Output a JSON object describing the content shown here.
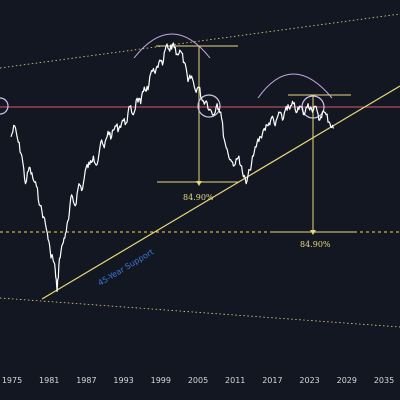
{
  "chart_data": {
    "type": "line",
    "title": "",
    "xlabel": "",
    "ylabel": "",
    "x_ticks": [
      "1975",
      "1981",
      "1987",
      "1993",
      "1999",
      "2005",
      "2011",
      "2017",
      "2023",
      "2029",
      "2035"
    ],
    "xlim": [
      1973,
      2039
    ],
    "ylim": [
      0,
      100
    ],
    "grid": false,
    "series": [
      {
        "points": [
          [
            1973.0,
            70.0
          ],
          [
            1973.6,
            74.0
          ],
          [
            1974.2,
            68.0
          ],
          [
            1974.8,
            63.0
          ],
          [
            1975.4,
            53.0
          ],
          [
            1976.0,
            59.0
          ],
          [
            1976.6,
            55.0
          ],
          [
            1977.2,
            52.0
          ],
          [
            1977.8,
            45.0
          ],
          [
            1978.4,
            41.0
          ],
          [
            1979.0,
            35.0
          ],
          [
            1979.5,
            28.0
          ],
          [
            1979.9,
            26.0
          ],
          [
            1980.3,
            22.0
          ],
          [
            1980.6,
            14.0
          ],
          [
            1981.0,
            26.0
          ],
          [
            1981.5,
            31.0
          ],
          [
            1982.0,
            35.0
          ],
          [
            1982.5,
            40.0
          ],
          [
            1983.0,
            49.0
          ],
          [
            1983.6,
            45.0
          ],
          [
            1984.2,
            53.0
          ],
          [
            1984.8,
            51.0
          ],
          [
            1985.4,
            59.0
          ],
          [
            1986.0,
            60.0
          ],
          [
            1986.6,
            63.0
          ],
          [
            1987.2,
            60.0
          ],
          [
            1987.8,
            68.0
          ],
          [
            1988.4,
            66.0
          ],
          [
            1989.0,
            72.0
          ],
          [
            1989.6,
            70.0
          ],
          [
            1990.2,
            74.0
          ],
          [
            1990.8,
            73.0
          ],
          [
            1991.4,
            76.0
          ],
          [
            1992.0,
            75.0
          ],
          [
            1992.6,
            81.0
          ],
          [
            1993.2,
            78.0
          ],
          [
            1993.8,
            84.0
          ],
          [
            1994.4,
            82.0
          ],
          [
            1995.0,
            88.0
          ],
          [
            1995.6,
            87.0
          ],
          [
            1996.2,
            94.0
          ],
          [
            1996.8,
            93.0
          ],
          [
            1997.4,
            97.0
          ],
          [
            1998.0,
            96.0
          ],
          [
            1998.6,
            103.0
          ],
          [
            1999.2,
            101.0
          ],
          [
            1999.8,
            104.0
          ],
          [
            2000.4,
            100.0
          ],
          [
            2001.0,
            101.0
          ],
          [
            2001.6,
            97.0
          ],
          [
            2002.2,
            90.0
          ],
          [
            2002.8,
            92.0
          ],
          [
            2003.4,
            87.0
          ],
          [
            2004.0,
            88.0
          ],
          [
            2004.6,
            83.0
          ],
          [
            2005.2,
            83.0
          ],
          [
            2005.8,
            80.0
          ],
          [
            2006.4,
            78.0
          ],
          [
            2007.0,
            82.0
          ],
          [
            2007.6,
            79.0
          ],
          [
            2008.2,
            69.0
          ],
          [
            2008.8,
            64.0
          ],
          [
            2009.4,
            61.0
          ],
          [
            2010.0,
            60.0
          ],
          [
            2010.6,
            63.0
          ],
          [
            2011.2,
            57.0
          ],
          [
            2011.8,
            53.0
          ],
          [
            2012.4,
            58.0
          ],
          [
            2013.0,
            63.0
          ],
          [
            2013.6,
            68.0
          ],
          [
            2014.2,
            70.0
          ],
          [
            2014.8,
            73.0
          ],
          [
            2015.4,
            74.0
          ],
          [
            2016.0,
            77.0
          ],
          [
            2016.6,
            74.0
          ],
          [
            2017.2,
            79.0
          ],
          [
            2017.8,
            76.0
          ],
          [
            2018.4,
            81.0
          ],
          [
            2019.0,
            80.0
          ],
          [
            2019.6,
            82.0
          ],
          [
            2020.2,
            79.0
          ],
          [
            2020.8,
            81.0
          ],
          [
            2021.4,
            78.0
          ],
          [
            2022.0,
            82.0
          ],
          [
            2022.6,
            80.0
          ],
          [
            2023.2,
            81.0
          ],
          [
            2023.8,
            76.0
          ],
          [
            2024.4,
            79.0
          ],
          [
            2025.0,
            78.0
          ],
          [
            2025.6,
            75.0
          ],
          [
            2026.2,
            73.0
          ]
        ]
      }
    ],
    "annotations": [
      {
        "text": "84.90%"
      },
      {
        "text": "84.90%"
      },
      {
        "text": "45-Year Support"
      }
    ]
  }
}
